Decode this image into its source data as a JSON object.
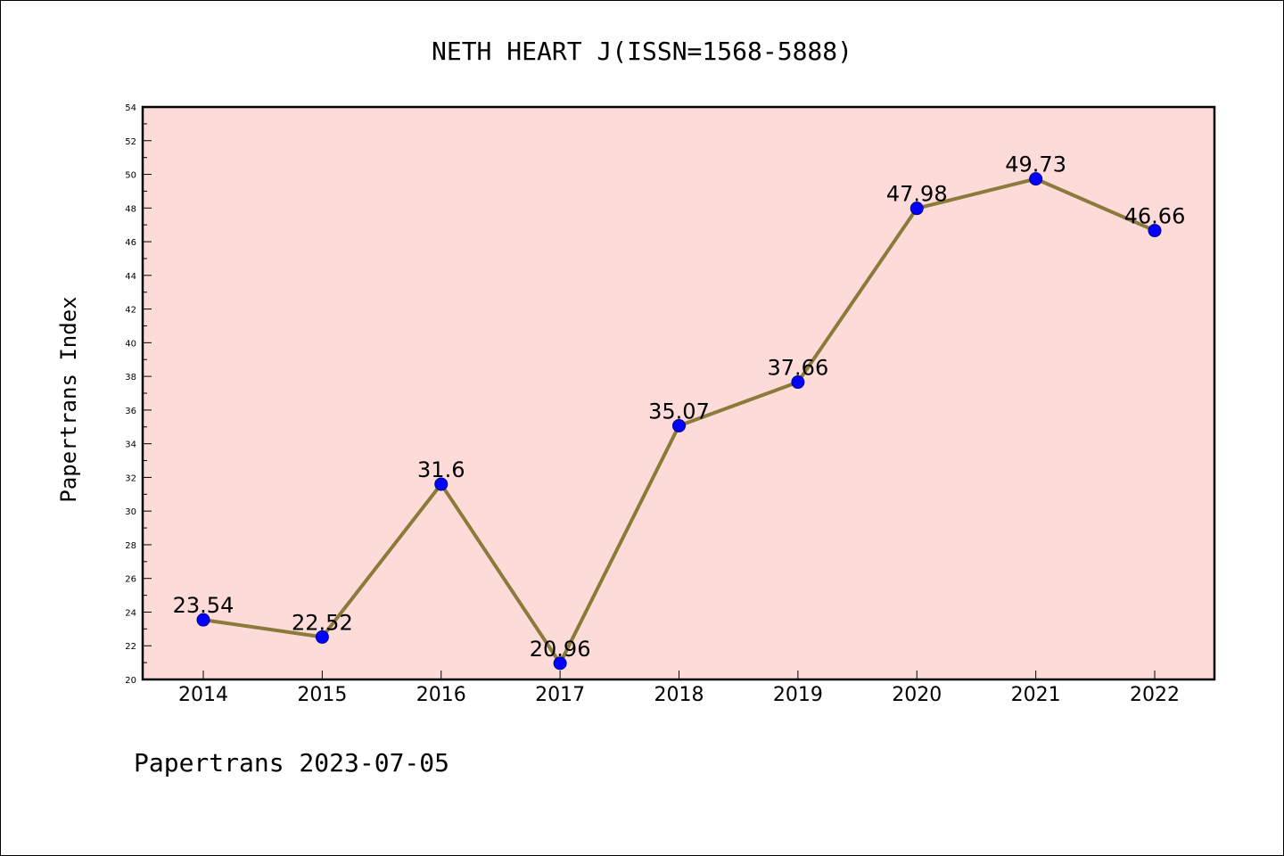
{
  "chart_data": {
    "type": "line",
    "title": "NETH HEART J(ISSN=1568-5888)",
    "xlabel": "",
    "ylabel": "Papertrans Index",
    "categories": [
      "2014",
      "2015",
      "2016",
      "2017",
      "2018",
      "2019",
      "2020",
      "2021",
      "2022"
    ],
    "series": [
      {
        "values": [
          23.54,
          22.52,
          31.6,
          20.96,
          35.07,
          37.66,
          47.98,
          49.73,
          46.66
        ],
        "data_labels": [
          "23.54",
          "22.52",
          "31.6",
          "20.96",
          "35.07",
          "37.66",
          "47.98",
          "49.73",
          "46.66"
        ]
      }
    ],
    "ylim": [
      20,
      54
    ],
    "yticks": [
      "20",
      "22",
      "24",
      "26",
      "28",
      "30",
      "32",
      "34",
      "36",
      "38",
      "40",
      "42",
      "44",
      "46",
      "48",
      "50",
      "52",
      "54"
    ],
    "grid": false,
    "legend": "none",
    "footer": "Papertrans 2023-07-05",
    "colors": {
      "plot_background": "#fddbd9",
      "line": "#8b7a3a",
      "marker": "#0000ff",
      "axis": "#000000"
    }
  }
}
